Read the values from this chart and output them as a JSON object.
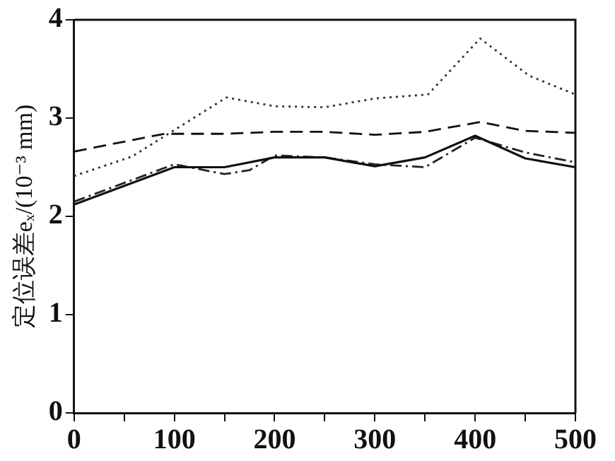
{
  "chart_data": {
    "type": "line",
    "ylabel": "定位误差eₓ/(10⁻³ mm)",
    "xlim": [
      0,
      500
    ],
    "ylim": [
      0,
      4
    ],
    "xticks": [
      0,
      {
        "value": 50,
        "label": null
      },
      100,
      {
        "value": 150,
        "label": null
      },
      200,
      {
        "value": 250,
        "label": null
      },
      300,
      {
        "value": 350,
        "label": null
      },
      400,
      {
        "value": 450,
        "label": null
      },
      500
    ],
    "yticks": [
      0,
      1,
      2,
      3,
      4
    ],
    "grid": false,
    "legend": false,
    "marker": "none",
    "series": [
      {
        "color": "#111111",
        "line_style": "solid",
        "x": [
          0,
          100,
          150,
          200,
          250,
          300,
          350,
          400,
          450,
          500
        ],
        "values": [
          2.12,
          2.5,
          2.5,
          2.6,
          2.6,
          2.51,
          2.6,
          2.82,
          2.59,
          2.5
        ]
      },
      {
        "color": "#111111",
        "line_style": "dashed",
        "x": [
          0,
          90,
          150,
          200,
          250,
          300,
          350,
          405,
          450,
          500
        ],
        "values": [
          2.66,
          2.84,
          2.84,
          2.86,
          2.86,
          2.83,
          2.86,
          2.96,
          2.87,
          2.85
        ]
      },
      {
        "color": "#333333",
        "line_style": "dotted",
        "x": [
          0,
          58,
          152,
          200,
          250,
          300,
          353,
          405,
          454,
          500
        ],
        "values": [
          2.41,
          2.61,
          3.21,
          3.12,
          3.11,
          3.2,
          3.24,
          3.81,
          3.43,
          3.24
        ]
      },
      {
        "color": "#222222",
        "line_style": "dashdot",
        "x": [
          0,
          100,
          150,
          175,
          200,
          250,
          300,
          350,
          400,
          450,
          500
        ],
        "values": [
          2.15,
          2.53,
          2.43,
          2.47,
          2.62,
          2.6,
          2.53,
          2.5,
          2.8,
          2.65,
          2.55
        ]
      }
    ]
  }
}
